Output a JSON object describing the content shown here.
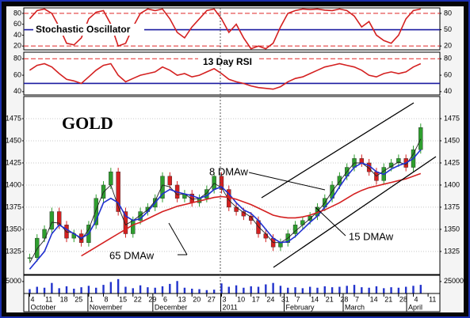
{
  "chart_data": {
    "type": "stock",
    "x": [
      0,
      0.5,
      1,
      1.5,
      2,
      2.5,
      3,
      3.5,
      4,
      4.5,
      5,
      5.5,
      6,
      6.5,
      7,
      7.5,
      8,
      8.5,
      9,
      9.5,
      10,
      10.5,
      11,
      11.5,
      12,
      12.5,
      13,
      13.5,
      14,
      14.5,
      15,
      15.5,
      16,
      16.5,
      17,
      17.5,
      18,
      18.5,
      19,
      19.5,
      20,
      20.5,
      21,
      21.5,
      22,
      22.5,
      23,
      23.5,
      24,
      24.5,
      25,
      25.5,
      26,
      26.5
    ],
    "xlim": [
      -0.4,
      27.8
    ],
    "xticks": [
      {
        "value": 0,
        "label": "4"
      },
      {
        "value": 1,
        "label": "11"
      },
      {
        "value": 2,
        "label": "18"
      },
      {
        "value": 3,
        "label": "25"
      },
      {
        "value": 4,
        "label": "1"
      },
      {
        "value": 5,
        "label": "8"
      },
      {
        "value": 6,
        "label": "15"
      },
      {
        "value": 7,
        "label": "22"
      },
      {
        "value": 8,
        "label": "29"
      },
      {
        "value": 9,
        "label": "6"
      },
      {
        "value": 10,
        "label": "13"
      },
      {
        "value": 11,
        "label": "20"
      },
      {
        "value": 12,
        "label": "27"
      },
      {
        "value": 13,
        "label": "3"
      },
      {
        "value": 14,
        "label": "10"
      },
      {
        "value": 15,
        "label": "17"
      },
      {
        "value": 16,
        "label": "24"
      },
      {
        "value": 17,
        "label": "31"
      },
      {
        "value": 18,
        "label": "7"
      },
      {
        "value": 19,
        "label": "14"
      },
      {
        "value": 20,
        "label": "21"
      },
      {
        "value": 21,
        "label": "28"
      },
      {
        "value": 22,
        "label": "7"
      },
      {
        "value": 23,
        "label": "14"
      },
      {
        "value": 24,
        "label": "21"
      },
      {
        "value": 25,
        "label": "28"
      },
      {
        "value": 26,
        "label": "4"
      },
      {
        "value": 27,
        "label": "11"
      }
    ],
    "xmonths": [
      {
        "value": 0,
        "label": "October"
      },
      {
        "value": 4,
        "label": "November"
      },
      {
        "value": 8.4,
        "label": "December"
      },
      {
        "value": 13,
        "label": "2011"
      },
      {
        "value": 17.3,
        "label": "February"
      },
      {
        "value": 21.3,
        "label": "March"
      },
      {
        "value": 25.6,
        "label": "April"
      }
    ],
    "panels": [
      {
        "type": "line",
        "title": "Stochastic Oscillator",
        "ylim": [
          13,
          90
        ],
        "yticks": [
          20,
          40,
          60,
          80
        ],
        "y2ticks": [
          20,
          50,
          80
        ],
        "levels": [
          {
            "value": 80,
            "color": "#e02828",
            "dash": true
          },
          {
            "value": 50,
            "color": "#1a1aa0",
            "dash": false
          },
          {
            "value": 20,
            "color": "#e02828",
            "dash": true
          }
        ],
        "series": [
          {
            "color": "#d42020",
            "values": [
              70,
              85,
              88,
              80,
              55,
              25,
              22,
              35,
              70,
              82,
              85,
              60,
              20,
              25,
              55,
              80,
              88,
              85,
              88,
              70,
              45,
              35,
              55,
              70,
              85,
              88,
              70,
              45,
              60,
              35,
              15,
              20,
              15,
              25,
              55,
              80,
              85,
              88,
              87,
              88,
              86,
              85,
              88,
              85,
              75,
              55,
              65,
              40,
              30,
              25,
              40,
              70,
              85,
              88
            ]
          }
        ]
      },
      {
        "type": "line",
        "title": "13 Day RSI",
        "ylim": [
          36,
          88
        ],
        "yticks": [
          40,
          60,
          80
        ],
        "y2ticks": [
          40,
          60,
          80
        ],
        "levels": [
          {
            "value": 80,
            "color": "#e02828",
            "dash": true
          },
          {
            "value": 50,
            "color": "#1a1aa0",
            "dash": false
          }
        ],
        "series": [
          {
            "color": "#d42020",
            "values": [
              66,
              72,
              74,
              70,
              62,
              55,
              53,
              50,
              58,
              66,
              72,
              74,
              60,
              52,
              56,
              60,
              62,
              64,
              70,
              66,
              60,
              62,
              58,
              60,
              64,
              68,
              62,
              55,
              52,
              50,
              47,
              45,
              44,
              43,
              46,
              52,
              56,
              58,
              62,
              66,
              70,
              72,
              74,
              72,
              70,
              66,
              60,
              58,
              62,
              64,
              62,
              64,
              70,
              74
            ]
          }
        ]
      },
      {
        "type": "candlestick",
        "title": "GOLD",
        "ylim": [
          1299,
          1500
        ],
        "yticks": [
          1325,
          1350,
          1375,
          1400,
          1425,
          1450,
          1475
        ],
        "y2ticks": [
          1325,
          1350,
          1375,
          1400,
          1425,
          1450,
          1475
        ],
        "grid": true,
        "up_color": "#2e9e2e",
        "down_color": "#d42020",
        "values": [
          1318,
          1340,
          1350,
          1370,
          1355,
          1340,
          1345,
          1335,
          1355,
          1385,
          1400,
          1415,
          1370,
          1345,
          1360,
          1370,
          1375,
          1385,
          1410,
          1400,
          1385,
          1390,
          1380,
          1385,
          1395,
          1410,
          1395,
          1375,
          1370,
          1365,
          1360,
          1345,
          1340,
          1330,
          1335,
          1345,
          1355,
          1360,
          1365,
          1375,
          1385,
          1400,
          1410,
          1420,
          1430,
          1425,
          1415,
          1405,
          1420,
          1425,
          1430,
          1420,
          1440,
          1465
        ],
        "series": [
          {
            "name": "8 DMAw",
            "color": "#222222",
            "values": [
              1312,
              1328,
              1338,
              1358,
              1357,
              1347,
              1346,
              1338,
              1350,
              1372,
              1392,
              1400,
              1376,
              1355,
              1360,
              1366,
              1372,
              1382,
              1400,
              1398,
              1389,
              1390,
              1384,
              1385,
              1391,
              1402,
              1397,
              1383,
              1375,
              1369,
              1364,
              1353,
              1345,
              1335,
              1335,
              1340,
              1348,
              1355,
              1362,
              1370,
              1380,
              1393,
              1404,
              1415,
              1425,
              1425,
              1419,
              1410,
              1416,
              1421,
              1426,
              1423,
              1435,
              1452
            ]
          },
          {
            "name": "15 DMAw",
            "color": "#1f2fd0",
            "values": [
              1305,
              1315,
              1325,
              1345,
              1355,
              1350,
              1345,
              1340,
              1345,
              1360,
              1380,
              1385,
              1380,
              1365,
              1360,
              1362,
              1370,
              1380,
              1390,
              1395,
              1392,
              1390,
              1388,
              1385,
              1388,
              1395,
              1398,
              1390,
              1380,
              1372,
              1368,
              1360,
              1350,
              1340,
              1335,
              1336,
              1342,
              1350,
              1358,
              1365,
              1375,
              1385,
              1398,
              1410,
              1420,
              1425,
              1422,
              1415,
              1412,
              1418,
              1422,
              1425,
              1430,
              1440
            ]
          },
          {
            "name": "65 DMAw",
            "color": "#d42020",
            "values": [
              null,
              null,
              null,
              null,
              null,
              null,
              null,
              1320,
              1325,
              1330,
              1335,
              1340,
              1345,
              1350,
              1355,
              1358,
              1362,
              1366,
              1370,
              1373,
              1376,
              1378,
              1380,
              1382,
              1384,
              1386,
              1387,
              1386,
              1384,
              1381,
              1378,
              1374,
              1370,
              1366,
              1364,
              1363,
              1363,
              1364,
              1366,
              1369,
              1372,
              1376,
              1380,
              1385,
              1390,
              1394,
              1397,
              1399,
              1401,
              1403,
              1405,
              1407,
              1410,
              1413
            ]
          }
        ]
      },
      {
        "type": "bar",
        "ylim": [
          0,
          38000
        ],
        "yticks": [
          25000
        ],
        "y2ticks": [
          25000
        ],
        "color": "#2233cc",
        "values": [
          9000,
          14000,
          12000,
          22000,
          11000,
          15000,
          10000,
          13000,
          16000,
          12000,
          18000,
          24000,
          30000,
          14000,
          11000,
          17000,
          13000,
          12000,
          15000,
          20000,
          26000,
          12000,
          10000,
          9000,
          7000,
          8000,
          21000,
          14000,
          17000,
          12000,
          15000,
          14000,
          19000,
          22000,
          16000,
          12000,
          13000,
          11000,
          14000,
          12000,
          15000,
          13000,
          14000,
          16000,
          18000,
          13000,
          12000,
          15000,
          11000,
          13000,
          12000,
          14000,
          16000,
          18000
        ]
      }
    ]
  }
}
